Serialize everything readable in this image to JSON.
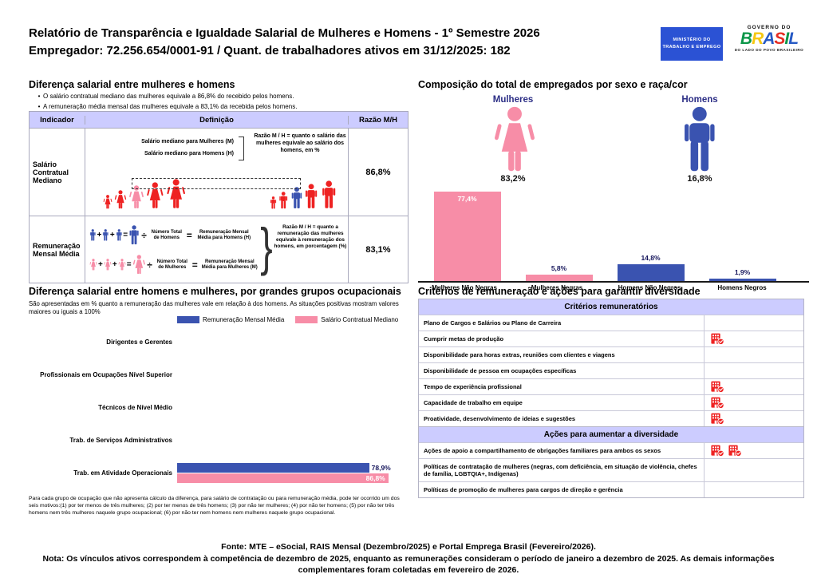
{
  "colors": {
    "pink": "#f78da7",
    "blue": "#3a53b0",
    "red": "#ee2222",
    "lavender": "#ccccff",
    "navy": "#2d2f86",
    "value_label": "#16165c",
    "mte_blue": "#2b52d4"
  },
  "header": {
    "title_line1": "Relatório de Transparência e Igualdade Salarial de Mulheres e Homens - 1º Semestre 2026",
    "title_line2": "Empregador: 72.256.654/0001-91 / Quant. de trabalhadores ativos em 31/12/2025: 182",
    "mte_logo": "MINISTÉRIO DO TRABALHO E EMPREGO",
    "gov_logo_top": "GOVERNO DO",
    "gov_logo_name": "BRASIL",
    "gov_logo_bottom": "DO LADO DO POVO BRASILEIRO"
  },
  "salary_section": {
    "title": "Diferença salarial entre mulheres e homens",
    "bullets": [
      "O salário contratual mediano das mulheres equivale a 86,8% do recebido pelos homens.",
      "A remuneração média mensal das mulheres equivale a 83,1% da recebida pelos homens."
    ],
    "table": {
      "headers": [
        "Indicador",
        "Definição",
        "Razão M/H"
      ],
      "row1": {
        "indicator": "Salário Contratual Mediano",
        "line1": "Salário mediano para Mulheres (M)",
        "line2": "Salário mediano para Homens (H)",
        "note": "Razão M / H = quanto o salário das mulheres equivale ao salário dos homens, em %",
        "ratio": "86,8%"
      },
      "row2": {
        "indicator": "Remuneração Mensal Média",
        "men_divide": "Número Total de Homens",
        "men_result": "Remuneração Mensal Média para Homens (H)",
        "women_divide": "Número Total de Mulheres",
        "women_result": "Remuneração Mensal Média para Mulheres (M)",
        "note": "Razão M / H = quanto a remuneração das mulheres equivale à remuneração dos homens, em porcentagem (%)",
        "ratio": "83,1%"
      }
    }
  },
  "composition": {
    "title": "Composição do total de empregados por sexo e raça/cor",
    "female_label": "Mulheres",
    "female_pct": "83,2%",
    "male_label": "Homens",
    "male_pct": "16,8%"
  },
  "occupational": {
    "title": "Diferença salarial entre homens e mulheres, por grandes grupos ocupacionais",
    "subtitle": "São apresentadas em % quanto a remuneração das mulheres vale em relação à dos homens. As situações positivas mostram valores maiores ou iguais a 100%",
    "legend": [
      {
        "name": "Remuneração Mensal Média",
        "color": "#3a53b0"
      },
      {
        "name": "Salário Contratual Mediano",
        "color": "#f78da7"
      }
    ],
    "footnote": "Para cada grupo de ocupação que não apresenta cálculo da diferença, para salário de contratação ou para remuneração média, pode ter ocorrido um dos seis motivos:(1) por ter menos de três mulheres; (2) por ter menos de três homens; (3) por não ter mulheres; (4) por não ter homens; (5) por não ter três homens nem três mulheres naquele grupo ocupacional; (6) por não ter nem homens nem mulheres naquele grupo ocupacional."
  },
  "criteria": {
    "title": "Critérios de remuneração e ações para garantir diversidade",
    "sections": [
      {
        "header": "Critérios remuneratórios",
        "rows": [
          {
            "label": "Plano de Cargos e Salários ou Plano de Carreira",
            "icons": 0
          },
          {
            "label": "Cumprir metas de produção",
            "icons": 1
          },
          {
            "label": "Disponibilidade para horas extras, reuniões com clientes e viagens",
            "icons": 0
          },
          {
            "label": "Disponibilidade de pessoa em ocupações específicas",
            "icons": 0
          },
          {
            "label": "Tempo de experiência profissional",
            "icons": 1
          },
          {
            "label": "Capacidade de trabalho em equipe",
            "icons": 1
          },
          {
            "label": "Proatividade, desenvolvimento de ideias e sugestões",
            "icons": 1
          }
        ]
      },
      {
        "header": "Ações para aumentar a diversidade",
        "rows": [
          {
            "label": "Ações de apoio a compartilhamento de obrigações familiares para ambos os sexos",
            "icons": 2
          },
          {
            "label": "Políticas de contratação de mulheres (negras, com deficiência, em situação de violência, chefes de família, LGBTQIA+, Indígenas)",
            "icons": 0
          },
          {
            "label": "Políticas de promoção de mulheres para cargos de direção e gerência",
            "icons": 0
          }
        ]
      }
    ]
  },
  "footer": {
    "fonte": "Fonte: MTE – eSocial, RAIS Mensal (Dezembro/2025) e Portal Emprega Brasil (Fevereiro/2026).",
    "nota": "Nota: Os vínculos ativos correspondem à competência de dezembro de 2025, enquanto as remunerações consideram o período de janeiro a dezembro de 2025. As demais informações complementares foram coletadas em fevereiro de 2026."
  },
  "chart_data": [
    {
      "type": "bar",
      "title": "Composição do total de empregados por sexo e raça/cor",
      "categories": [
        "Mulheres Não Negras",
        "Mulheres Negras",
        "Homens Não Negros",
        "Homens Negros"
      ],
      "values": [
        77.4,
        5.8,
        14.8,
        1.9
      ],
      "value_labels": [
        "77,4%",
        "5,8%",
        "14,8%",
        "1,9%"
      ],
      "bar_colors": [
        "#f78da7",
        "#f78da7",
        "#3a53b0",
        "#3a53b0"
      ],
      "summary": {
        "Mulheres": 83.2,
        "Homens": 16.8
      },
      "ylim": [
        0,
        80
      ],
      "grid": false,
      "legend_position": "none"
    },
    {
      "type": "bar",
      "orientation": "horizontal",
      "title": "Diferença salarial entre homens e mulheres, por grandes grupos ocupacionais",
      "categories": [
        "Dirigentes e Gerentes",
        "Profissionais em Ocupações Nível Superior",
        "Técnicos de Nível Médio",
        "Trab. de Serviços Administrativos",
        "Trab. em Atividade Operacionais"
      ],
      "series": [
        {
          "name": "Remuneração Mensal Média",
          "color": "#3a53b0",
          "values": [
            null,
            null,
            null,
            null,
            78.9
          ],
          "value_labels": [
            null,
            null,
            null,
            null,
            "78,9%"
          ]
        },
        {
          "name": "Salário Contratual Mediano",
          "color": "#f78da7",
          "values": [
            null,
            null,
            null,
            null,
            86.8
          ],
          "value_labels": [
            null,
            null,
            null,
            null,
            "86,8%"
          ]
        }
      ],
      "xlim": [
        0,
        100
      ],
      "grid": false,
      "legend_position": "top"
    }
  ]
}
